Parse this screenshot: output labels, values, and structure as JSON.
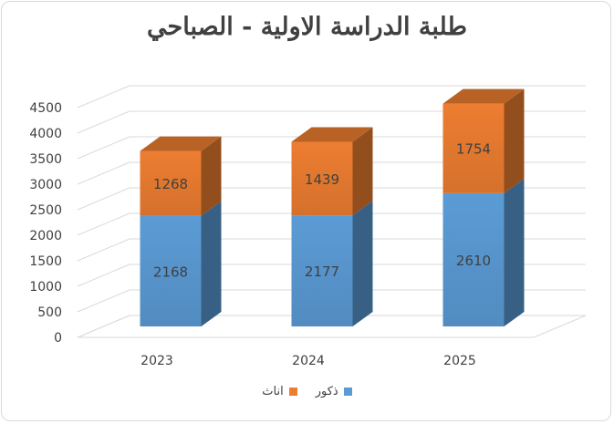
{
  "chart_data": {
    "type": "bar",
    "stacked": true,
    "three_d": true,
    "title": "طلبة الدراسة الاولية - الصباحي",
    "categories": [
      "2023",
      "2024",
      "2025"
    ],
    "series": [
      {
        "name": "ذكور",
        "values": [
          2168,
          2177,
          2610
        ],
        "color": "#5b9bd5"
      },
      {
        "name": "اناث",
        "values": [
          1268,
          1439,
          1754
        ],
        "color": "#ed7d31"
      }
    ],
    "ylim": [
      0,
      4500
    ],
    "yticks": [
      0,
      500,
      1000,
      1500,
      2000,
      2500,
      3000,
      3500,
      4000,
      4500
    ],
    "grid": true,
    "legend": "bottom"
  }
}
